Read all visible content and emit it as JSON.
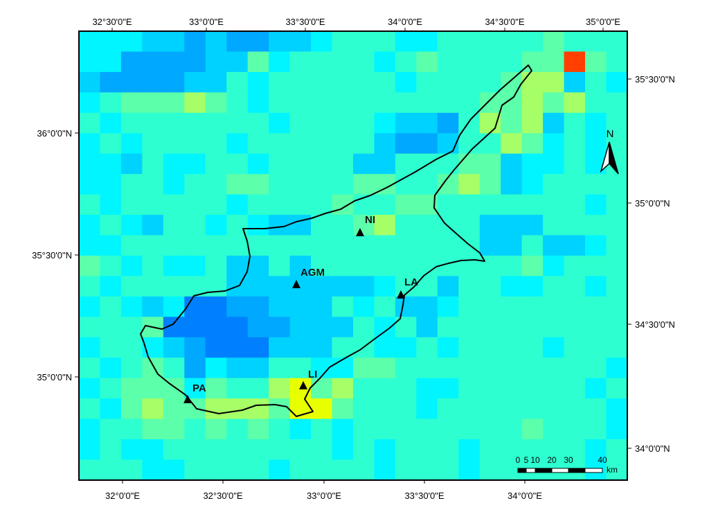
{
  "map": {
    "top_axis_labels": [
      "32°30'0\"E",
      "33°0'0\"E",
      "33°30'0\"E",
      "34°0'0\"E",
      "34°30'0\"E",
      "35°0'0\"E"
    ],
    "bottom_axis_labels": [
      "32°0'0\"E",
      "32°30'0\"E",
      "33°0'0\"E",
      "33°30'0\"E",
      "34°0'0\"E"
    ],
    "left_axis_labels": [
      "36°0'0\"N",
      "35°30'0\"N",
      "35°0'0\"N"
    ],
    "right_axis_labels": [
      "35°30'0\"N",
      "35°0'0\"N",
      "34°30'0\"N",
      "34°0'0\"N"
    ],
    "sites": [
      {
        "code": "NI"
      },
      {
        "code": "AGM"
      },
      {
        "code": "LA"
      },
      {
        "code": "LI"
      },
      {
        "code": "PA"
      }
    ],
    "north_arrow": {
      "label": "N",
      "icon": "north-arrow-icon"
    },
    "scale_bar": {
      "ticks": [
        "0",
        "5",
        "10",
        "20",
        "30",
        "40"
      ],
      "unit": "km"
    },
    "palette": {
      "cyan": "#00f5ff",
      "teal": "#2effd0",
      "mint": "#5cffaa",
      "green": "#a6ff66",
      "yellow": "#e8ff00",
      "light_blue": "#00d2ff",
      "blue": "#00a8ff",
      "deep_blue": "#0080ff",
      "red": "#ff4000",
      "coast": "#000000"
    }
  }
}
